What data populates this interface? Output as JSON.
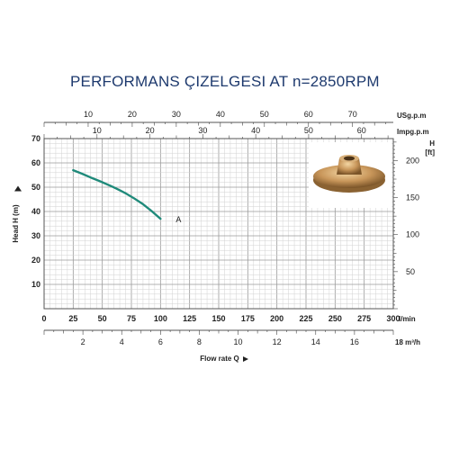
{
  "title": "PERFORMANS ÇIZELGESI  AT n=2850RPM",
  "chart_data": {
    "type": "line",
    "title": "PERFORMANS ÇIZELGESI  AT n=2850RPM",
    "xlabel": "Flow rate Q",
    "ylabel": "Head H (m)",
    "y_axis_left": {
      "unit": "Head H (m)",
      "range": [
        0,
        70
      ],
      "ticks": [
        10,
        20,
        30,
        40,
        50,
        60,
        70
      ]
    },
    "y_axis_right": {
      "unit_line1": "H",
      "unit_line2": "[ft]",
      "range": [
        0,
        229.7
      ],
      "ticks": [
        50,
        100,
        150,
        200
      ]
    },
    "x_axis_lmin": {
      "unit": "l/min",
      "range": [
        0,
        300
      ],
      "ticks": [
        0,
        25,
        50,
        75,
        100,
        125,
        150,
        175,
        200,
        225,
        250,
        275,
        300
      ]
    },
    "x_axis_m3h": {
      "unit": "18 m³/h",
      "range": [
        0,
        18
      ],
      "ticks": [
        2,
        4,
        6,
        8,
        10,
        12,
        14,
        16
      ]
    },
    "x_axis_usgpm": {
      "unit": "USg.p.m",
      "range": [
        0,
        79.25
      ],
      "ticks": [
        10,
        20,
        30,
        40,
        50,
        60,
        70
      ]
    },
    "x_axis_impgpm": {
      "unit": "Impg.p.m",
      "range": [
        0,
        66
      ],
      "ticks": [
        10,
        20,
        30,
        40,
        50,
        60
      ]
    },
    "series": [
      {
        "name": "A",
        "x": [
          25,
          40,
          55,
          70,
          85,
          100
        ],
        "y": [
          57,
          54,
          51,
          47.5,
          43,
          37
        ]
      }
    ],
    "grid": true,
    "colors": {
      "curve": "#1f8a7a",
      "title": "#1e3a6e",
      "grid": "#b8b8b8"
    }
  },
  "image": {
    "description_icon": "bronze-impeller-photo"
  }
}
